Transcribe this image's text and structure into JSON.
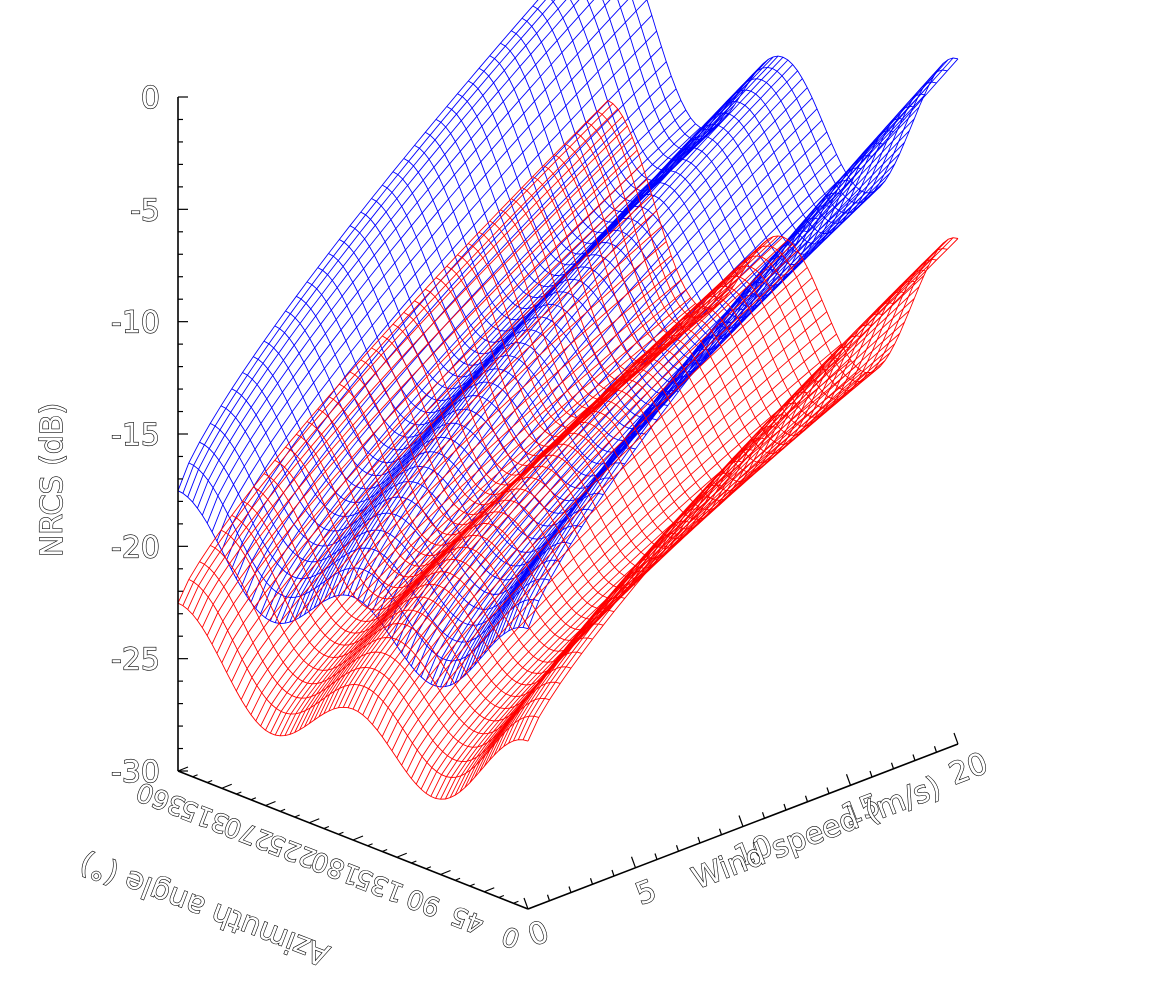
{
  "chart_data": {
    "type": "surface",
    "zlabel": "NRCS (dB)",
    "xlabel": "Wind speed (m/s)",
    "ylabel": "Azimuth angle (°)",
    "zlim": [
      -30,
      0
    ],
    "zticks": [
      "0",
      "-5",
      "-10",
      "-15",
      "-20",
      "-25",
      "-30"
    ],
    "xlim": [
      0,
      20
    ],
    "xticks": [
      "0",
      "5",
      "10",
      "15",
      "20"
    ],
    "ylim": [
      0,
      360
    ],
    "yticks": [
      "0",
      "45",
      "90",
      "135",
      "180",
      "225",
      "270",
      "315",
      "360"
    ],
    "wind_speed": [
      0,
      20
    ],
    "azimuth_deg": [
      0,
      360
    ],
    "series": [
      {
        "color": "#0000ff",
        "nrcs_at_min_wind_db": -20,
        "nrcs_at_max_wind_db": -4,
        "up_down_modulation_db": 6
      },
      {
        "color": "#ff0000",
        "nrcs_at_min_wind_db": -25,
        "nrcs_at_max_wind_db": -12,
        "up_down_modulation_db": 6
      }
    ]
  }
}
